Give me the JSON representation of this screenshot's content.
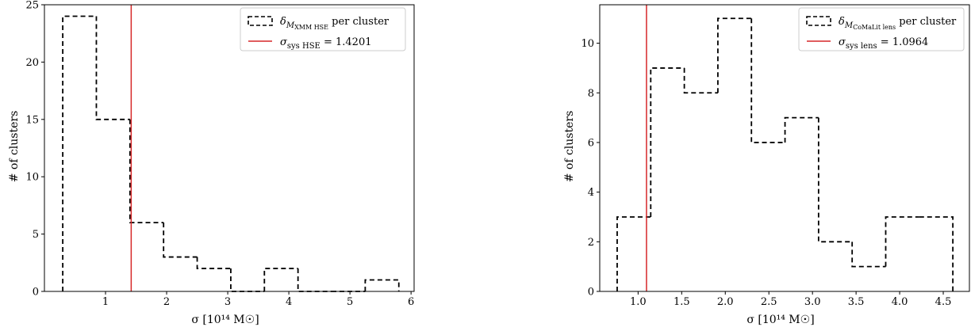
{
  "chart_data": [
    {
      "type": "histogram",
      "title": "",
      "xlabel": "σ [10¹⁴ M☉]",
      "ylabel": "# of clusters",
      "xlim": [
        0.0,
        6.05
      ],
      "ylim": [
        0,
        25
      ],
      "xticks": [
        1,
        2,
        3,
        4,
        5,
        6
      ],
      "yticks": [
        0,
        5,
        10,
        15,
        20,
        25
      ],
      "grid": false,
      "legend_placement": "top-right",
      "bin_edges": [
        0.3,
        0.85,
        1.4,
        1.95,
        2.5,
        3.05,
        3.6,
        4.15,
        4.7,
        5.25,
        5.8
      ],
      "counts": [
        24,
        15,
        6,
        3,
        2,
        0,
        2,
        0,
        0,
        1
      ],
      "vline_value": 1.4201,
      "legend_hist": {
        "prefix": "δ",
        "subscript": "M",
        "subsubscript": "XMM HSE",
        "suffix": " per cluster"
      },
      "legend_line": {
        "prefix": "σ",
        "subscript": "sys HSE",
        "suffix": " = 1.4201"
      },
      "colors": {
        "histogram": "#000000",
        "vline": "#d62728"
      }
    },
    {
      "type": "histogram",
      "title": "",
      "xlabel": "σ [10¹⁴ M☉]",
      "ylabel": "# of clusters",
      "xlim": [
        0.56,
        4.8
      ],
      "ylim": [
        0,
        11.55
      ],
      "xticks": [
        1.0,
        1.5,
        2.0,
        2.5,
        3.0,
        3.5,
        4.0,
        4.5
      ],
      "yticks": [
        0,
        2,
        4,
        6,
        8,
        10
      ],
      "grid": false,
      "legend_placement": "top-right",
      "bin_edges": [
        0.76,
        1.145,
        1.53,
        1.915,
        2.3,
        2.685,
        3.07,
        3.455,
        3.84,
        4.225,
        4.61
      ],
      "counts": [
        3,
        9,
        8,
        11,
        6,
        7,
        2,
        1,
        3,
        3
      ],
      "vline_value": 1.0964,
      "legend_hist": {
        "prefix": "δ",
        "subscript": "M",
        "subsubscript": "CoMaLit lens",
        "suffix": " per cluster"
      },
      "legend_line": {
        "prefix": "σ",
        "subscript": "sys lens",
        "suffix": " = 1.0964"
      },
      "colors": {
        "histogram": "#000000",
        "vline": "#d62728"
      }
    }
  ]
}
